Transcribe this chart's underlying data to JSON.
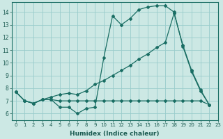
{
  "title": "",
  "xlabel": "Humidex (Indice chaleur)",
  "ylabel": "",
  "bg_color": "#cce8e4",
  "grid_color": "#99cccc",
  "line_color": "#1a6e64",
  "series": [
    {
      "x": [
        0,
        1,
        2,
        3,
        4,
        5,
        6,
        7,
        8,
        9,
        10,
        11,
        12,
        13,
        14,
        15,
        16,
        17,
        18,
        19,
        20,
        21,
        22
      ],
      "y": [
        7.7,
        7.0,
        6.8,
        7.1,
        7.1,
        6.5,
        6.5,
        6.0,
        6.4,
        6.5,
        10.4,
        13.7,
        13.0,
        13.5,
        14.2,
        14.4,
        14.5,
        14.5,
        14.0,
        11.3,
        9.3,
        7.8,
        6.7
      ]
    },
    {
      "x": [
        0,
        1,
        2,
        3,
        4,
        5,
        6,
        7,
        8,
        9,
        10,
        11,
        12,
        13,
        14,
        15,
        16,
        17,
        18,
        19,
        20,
        21,
        22
      ],
      "y": [
        7.7,
        7.0,
        6.8,
        7.1,
        7.3,
        7.5,
        7.6,
        7.5,
        7.8,
        8.3,
        8.6,
        9.0,
        9.4,
        9.8,
        10.3,
        10.7,
        11.2,
        11.6,
        13.9,
        11.4,
        9.4,
        7.9,
        6.7
      ]
    },
    {
      "x": [
        0,
        1,
        2,
        3,
        4,
        5,
        6,
        7,
        8,
        9,
        10,
        11,
        12,
        13,
        14,
        15,
        16,
        17,
        18,
        19,
        20,
        21,
        22
      ],
      "y": [
        7.7,
        7.0,
        6.8,
        7.1,
        7.1,
        7.0,
        7.0,
        7.0,
        7.0,
        7.0,
        7.0,
        7.0,
        7.0,
        7.0,
        7.0,
        7.0,
        7.0,
        7.0,
        7.0,
        7.0,
        7.0,
        7.0,
        6.7
      ]
    }
  ],
  "xlim": [
    -0.5,
    23
  ],
  "ylim": [
    5.5,
    14.8
  ],
  "yticks": [
    6,
    7,
    8,
    9,
    10,
    11,
    12,
    13,
    14
  ],
  "xticks": [
    0,
    1,
    2,
    3,
    4,
    5,
    6,
    7,
    8,
    9,
    10,
    11,
    12,
    13,
    14,
    15,
    16,
    17,
    18,
    19,
    20,
    21,
    22,
    23
  ]
}
